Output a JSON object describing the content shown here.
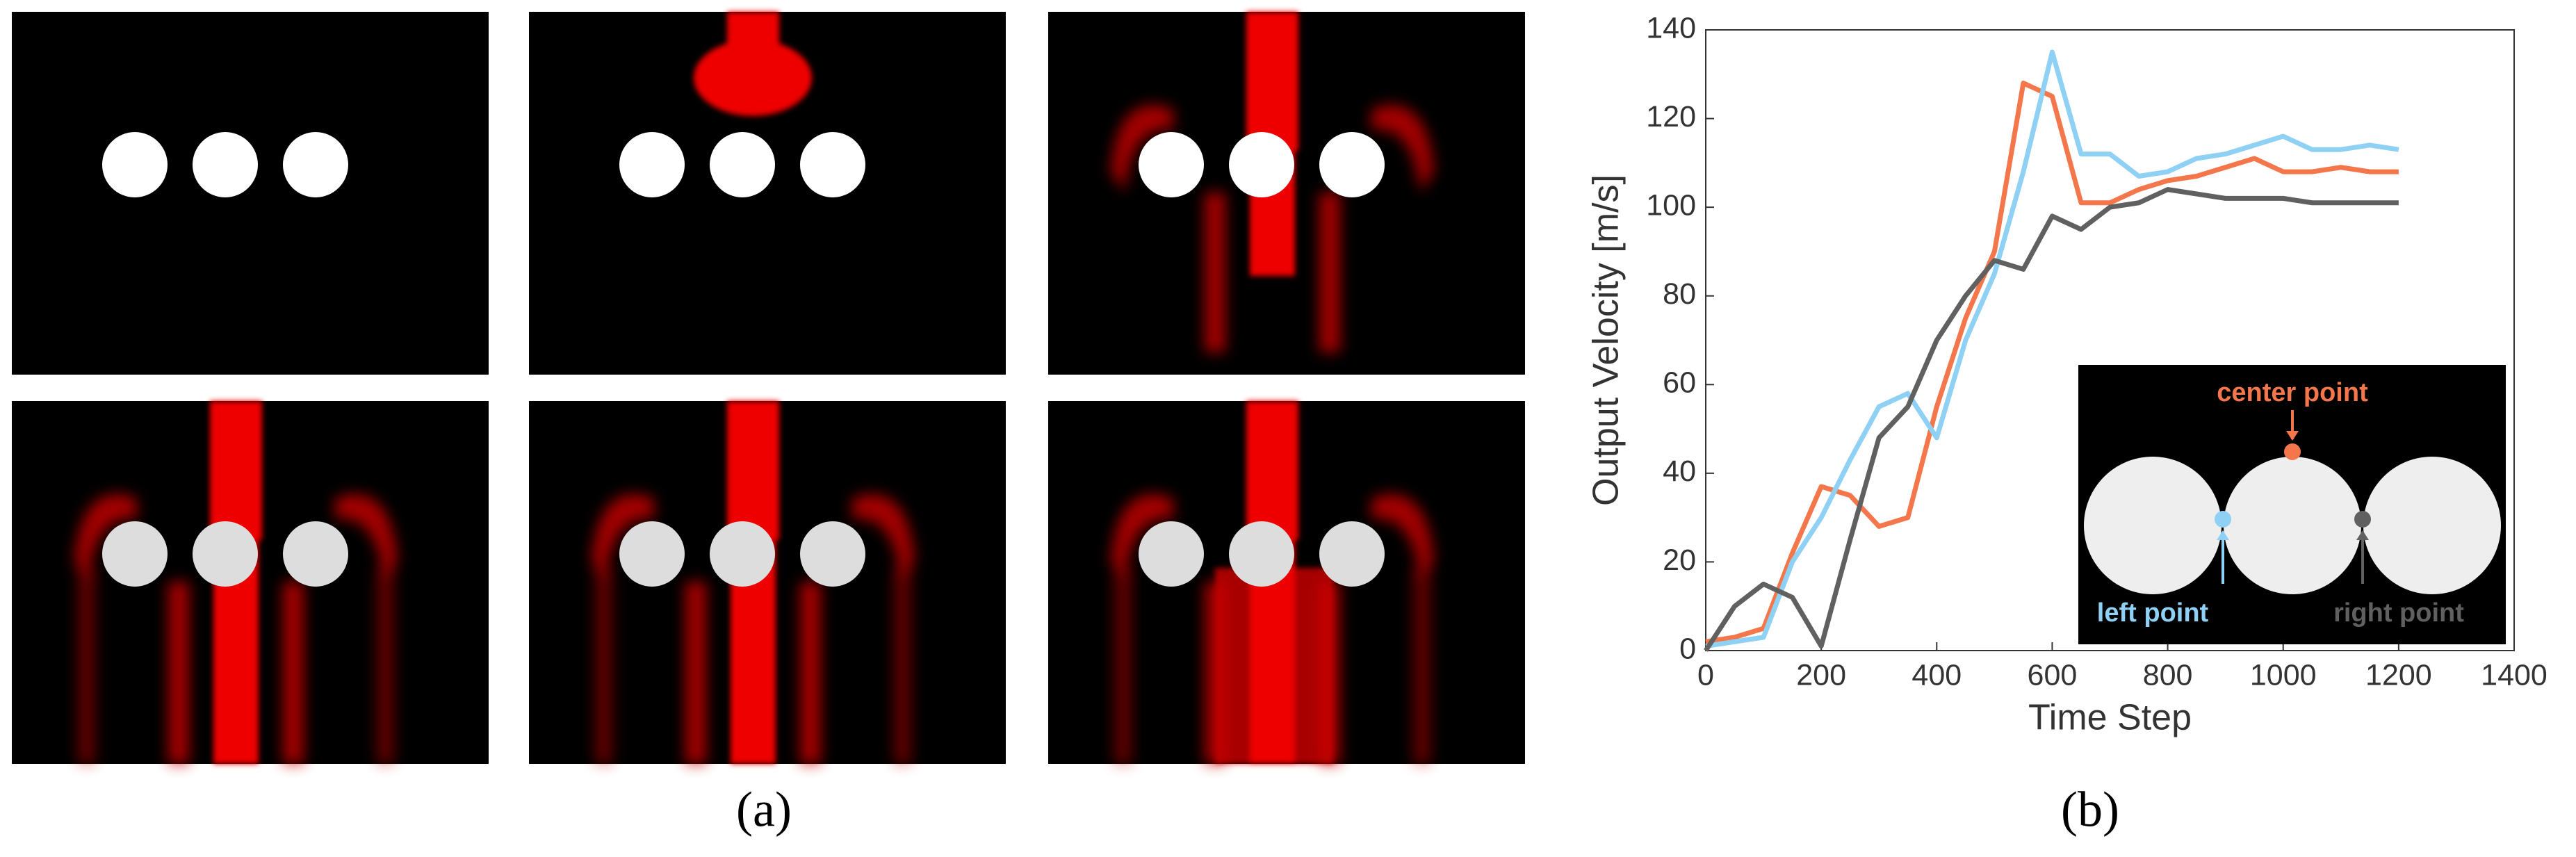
{
  "panel_labels": [
    "(a)",
    "(b)"
  ],
  "chart_data": {
    "type": "line",
    "x_label": "Time Step",
    "y_label": "Output Velocity [m/s]",
    "x": [
      0,
      50,
      100,
      150,
      200,
      250,
      300,
      350,
      400,
      450,
      500,
      550,
      600,
      650,
      700,
      750,
      800,
      850,
      900,
      950,
      1000,
      1050,
      1100,
      1150,
      1200
    ],
    "series": [
      {
        "name": "center point",
        "color": "#f4774c",
        "values": [
          2,
          3,
          5,
          22,
          37,
          35,
          28,
          30,
          55,
          75,
          90,
          128,
          125,
          101,
          101,
          104,
          106,
          107,
          109,
          111,
          108,
          108,
          109,
          108,
          108
        ]
      },
      {
        "name": "left point",
        "color": "#8fd0f5",
        "values": [
          1,
          2,
          3,
          20,
          30,
          43,
          55,
          58,
          48,
          70,
          85,
          108,
          135,
          112,
          112,
          107,
          108,
          111,
          112,
          114,
          116,
          113,
          113,
          114,
          113
        ]
      },
      {
        "name": "right point",
        "color": "#606060",
        "values": [
          0,
          10,
          15,
          12,
          1,
          25,
          48,
          55,
          70,
          80,
          88,
          86,
          98,
          95,
          100,
          101,
          104,
          103,
          102,
          102,
          102,
          101,
          101,
          101,
          101
        ]
      }
    ],
    "xlim": [
      0,
      1400
    ],
    "ylim": [
      0,
      140
    ],
    "xticks": [
      0,
      200,
      400,
      600,
      800,
      1000,
      1200,
      1400
    ],
    "yticks": [
      0,
      20,
      40,
      60,
      80,
      100,
      120,
      140
    ]
  }
}
